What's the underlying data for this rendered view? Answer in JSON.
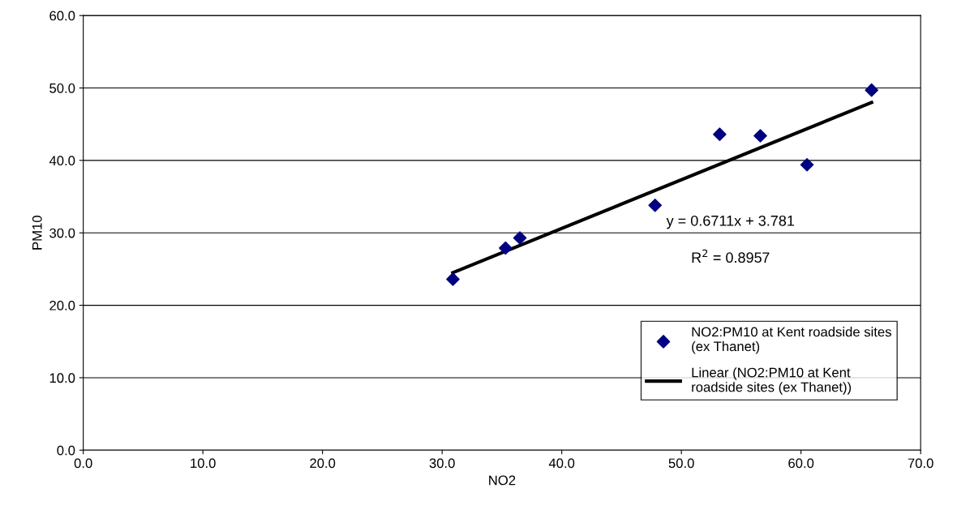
{
  "chart_data": {
    "type": "scatter",
    "xlabel": "NO2",
    "ylabel": "PM10",
    "xlim": [
      0,
      70
    ],
    "ylim": [
      0,
      60
    ],
    "xticks": [
      {
        "value": 0,
        "label": "0.0"
      },
      {
        "value": 10,
        "label": "10.0"
      },
      {
        "value": 20,
        "label": "20.0"
      },
      {
        "value": 30,
        "label": "30.0"
      },
      {
        "value": 40,
        "label": "40.0"
      },
      {
        "value": 50,
        "label": "50.0"
      },
      {
        "value": 60,
        "label": "60.0"
      },
      {
        "value": 70,
        "label": "70.0"
      }
    ],
    "yticks": [
      {
        "value": 0,
        "label": "0.0"
      },
      {
        "value": 10,
        "label": "10.0"
      },
      {
        "value": 20,
        "label": "20.0"
      },
      {
        "value": 30,
        "label": "30.0"
      },
      {
        "value": 40,
        "label": "40.0"
      },
      {
        "value": 50,
        "label": "50.0"
      },
      {
        "value": 60,
        "label": "60.0"
      }
    ],
    "grid": "y",
    "legend": "bottom right",
    "series": [
      {
        "name": "NO2:PM10 at Kent roadside sites (ex Thanet)",
        "marker": "diamond",
        "color": "#000080",
        "x": [
          30.9,
          35.3,
          36.5,
          47.8,
          53.2,
          56.6,
          60.5,
          65.9
        ],
        "values": [
          23.6,
          27.9,
          29.3,
          33.8,
          43.6,
          43.4,
          39.4,
          49.7
        ]
      },
      {
        "name": "Linear (NO2:PM10 at Kent roadside sites (ex Thanet))",
        "type": "line",
        "marker": "none",
        "color": "#000000",
        "x": [
          30.9,
          65.9
        ],
        "values": [
          24.5,
          48.0
        ]
      }
    ],
    "annotations": [
      "y = 0.6711x + 3.781",
      "R$^{2}$ = 0.8957"
    ]
  }
}
